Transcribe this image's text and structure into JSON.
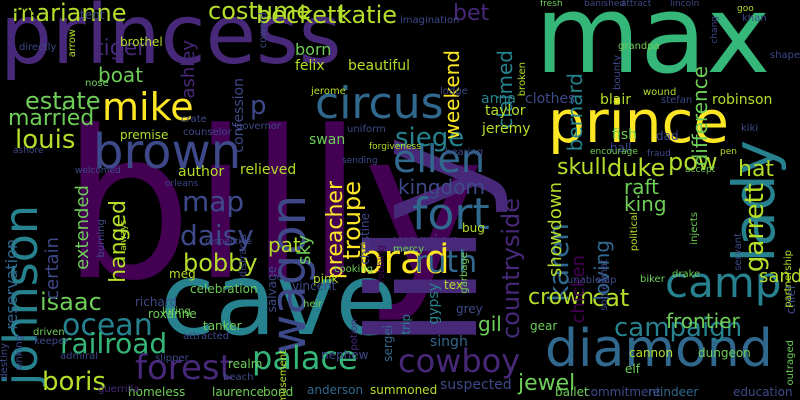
{
  "background": "#000000",
  "palette": {
    "deep_purple": "#440154",
    "purple": "#482878",
    "indigo": "#3e4989",
    "blue": "#31688e",
    "teal": "#26828e",
    "sea": "#1f9e89",
    "green": "#35b779",
    "lime": "#6ece58",
    "yellow_green": "#b5de2b",
    "yellow": "#fde725"
  },
  "words": [
    {
      "text": "billy",
      "color": "#440154"
    },
    {
      "text": "max",
      "color": "#35b779"
    },
    {
      "text": "princess",
      "color": "#482878"
    },
    {
      "text": "cave",
      "color": "#26828e"
    },
    {
      "text": "lily",
      "color": "#482878"
    },
    {
      "text": "prince",
      "color": "#fde725"
    },
    {
      "text": "diamond",
      "color": "#31688e"
    },
    {
      "text": "circus",
      "color": "#31688e"
    },
    {
      "text": "wagon",
      "color": "#3e4989"
    },
    {
      "text": "brown",
      "color": "#3e4989"
    },
    {
      "text": "camp",
      "color": "#26828e"
    },
    {
      "text": "lady",
      "color": "#26828e"
    },
    {
      "text": "mike",
      "color": "#fde725"
    },
    {
      "text": "johnson",
      "color": "#26828e"
    },
    {
      "text": "ellen",
      "color": "#31688e"
    },
    {
      "text": "forest",
      "color": "#482878"
    },
    {
      "text": "palace",
      "color": "#35b779"
    },
    {
      "text": "cowboy",
      "color": "#482878"
    },
    {
      "text": "fort",
      "color": "#31688e"
    },
    {
      "text": "brad",
      "color": "#fde725"
    },
    {
      "text": "ocean",
      "color": "#26828e"
    },
    {
      "text": "railroad",
      "color": "#35b779"
    },
    {
      "text": "campaign",
      "color": "#26828e"
    },
    {
      "text": "costume",
      "color": "#b5de2b"
    },
    {
      "text": "beckett",
      "color": "#b5de2b"
    },
    {
      "text": "katie",
      "color": "#b5de2b"
    },
    {
      "text": "marianne",
      "color": "#b5de2b"
    },
    {
      "text": "ruth",
      "color": "#31688e"
    },
    {
      "text": "kingdom",
      "color": "#3e4989"
    },
    {
      "text": "countryside",
      "color": "#482878"
    },
    {
      "text": "boris",
      "color": "#b5de2b"
    },
    {
      "text": "louis",
      "color": "#b5de2b"
    },
    {
      "text": "karen",
      "color": "#31688e"
    },
    {
      "text": "crown",
      "color": "#b5de2b"
    },
    {
      "text": "cat",
      "color": "#b5de2b"
    },
    {
      "text": "garrett",
      "color": "#b5de2b"
    },
    {
      "text": "hat",
      "color": "#b5de2b"
    },
    {
      "text": "duke",
      "color": "#b5de2b"
    },
    {
      "text": "troupe",
      "color": "#fde725"
    },
    {
      "text": "preacher",
      "color": "#fde725"
    },
    {
      "text": "estate",
      "color": "#6ece58"
    },
    {
      "text": "married",
      "color": "#6ece58"
    },
    {
      "text": "tiger",
      "color": "#482878"
    },
    {
      "text": "siege",
      "color": "#26828e"
    },
    {
      "text": "hanged",
      "color": "#b5de2b"
    },
    {
      "text": "map",
      "color": "#3e4989"
    },
    {
      "text": "daisy",
      "color": "#3e4989"
    },
    {
      "text": "bobby",
      "color": "#b5de2b"
    },
    {
      "text": "isaac",
      "color": "#6ece58"
    },
    {
      "text": "frontier",
      "color": "#6ece58"
    },
    {
      "text": "jewel",
      "color": "#6ece58"
    },
    {
      "text": "gil",
      "color": "#6ece58"
    },
    {
      "text": "pow",
      "color": "#b5de2b"
    },
    {
      "text": "loving",
      "color": "#31688e"
    },
    {
      "text": "king",
      "color": "#6ece58"
    },
    {
      "text": "raft",
      "color": "#6ece58"
    },
    {
      "text": "skull",
      "color": "#b5de2b"
    },
    {
      "text": "p",
      "color": "#3e4989"
    },
    {
      "text": "ashley",
      "color": "#482878"
    },
    {
      "text": "boat",
      "color": "#6ece58"
    },
    {
      "text": "bet",
      "color": "#482878"
    },
    {
      "text": "weekend",
      "color": "#fde725"
    },
    {
      "text": "claimed",
      "color": "#26828e"
    },
    {
      "text": "difference",
      "color": "#6ece58"
    },
    {
      "text": "bernard",
      "color": "#26828e"
    },
    {
      "text": "sand",
      "color": "#b5de2b"
    },
    {
      "text": "warrior",
      "color": "#482878"
    },
    {
      "text": "pat",
      "color": "#b5de2b"
    },
    {
      "text": "sky",
      "color": "#6ece58"
    },
    {
      "text": "showdown",
      "color": "#b5de2b"
    },
    {
      "text": "chicken",
      "color": "#440154"
    },
    {
      "text": "certain",
      "color": "#3e4989"
    },
    {
      "text": "extended",
      "color": "#6ece58"
    },
    {
      "text": "reservation",
      "color": "#31688e"
    },
    {
      "text": "author",
      "color": "#b5de2b"
    },
    {
      "text": "relieved",
      "color": "#b5de2b"
    },
    {
      "text": "confession",
      "color": "#3e4989"
    },
    {
      "text": "born",
      "color": "#6ece58"
    },
    {
      "text": "felix",
      "color": "#b5de2b"
    },
    {
      "text": "beautiful",
      "color": "#b5de2b"
    },
    {
      "text": "anna",
      "color": "#26828e"
    },
    {
      "text": "taylor",
      "color": "#b5de2b"
    },
    {
      "text": "jeremy",
      "color": "#b5de2b"
    },
    {
      "text": "clothes",
      "color": "#3e4989"
    },
    {
      "text": "blair",
      "color": "#b5de2b"
    },
    {
      "text": "robinson",
      "color": "#b5de2b"
    },
    {
      "text": "fish",
      "color": "#6ece58"
    },
    {
      "text": "dad",
      "color": "#3e4989"
    },
    {
      "text": "hall",
      "color": "#3e4989"
    },
    {
      "text": "swan",
      "color": "#6ece58"
    },
    {
      "text": "anderson",
      "color": "#31688e"
    },
    {
      "text": "summoned",
      "color": "#b5de2b"
    },
    {
      "text": "suspected",
      "color": "#3e4989"
    },
    {
      "text": "laurence",
      "color": "#6ece58"
    },
    {
      "text": "bond",
      "color": "#6ece58"
    },
    {
      "text": "homeless",
      "color": "#6ece58"
    },
    {
      "text": "cannon",
      "color": "#b5de2b"
    },
    {
      "text": "dungeon",
      "color": "#6ece58"
    },
    {
      "text": "education",
      "color": "#3e4989"
    },
    {
      "text": "reindeer",
      "color": "#31688e"
    },
    {
      "text": "commitment",
      "color": "#3e4989"
    },
    {
      "text": "ballet",
      "color": "#6ece58"
    },
    {
      "text": "singh",
      "color": "#31688e"
    },
    {
      "text": "elf",
      "color": "#6ece58"
    },
    {
      "text": "gypsy",
      "color": "#26828e"
    },
    {
      "text": "trip",
      "color": "#26828e"
    },
    {
      "text": "gear",
      "color": "#6ece58"
    },
    {
      "text": "sergei",
      "color": "#31688e"
    },
    {
      "text": "potion",
      "color": "#482878"
    },
    {
      "text": "nephew",
      "color": "#3e4989"
    },
    {
      "text": "realm",
      "color": "#6ece58"
    },
    {
      "text": "beach",
      "color": "#3e4989"
    },
    {
      "text": "amusement",
      "color": "#b5de2b"
    },
    {
      "text": "pink",
      "color": "#b5de2b"
    },
    {
      "text": "tex",
      "color": "#b5de2b"
    },
    {
      "text": "grey",
      "color": "#3e4989"
    },
    {
      "text": "salvage",
      "color": "#3e4989"
    },
    {
      "text": "heir",
      "color": "#6ece58"
    },
    {
      "text": "vincent",
      "color": "#3e4989"
    },
    {
      "text": "mercy",
      "color": "#6ece58"
    },
    {
      "text": "bug",
      "color": "#b5de2b"
    },
    {
      "text": "robbing",
      "color": "#440154"
    },
    {
      "text": "garbage",
      "color": "#6ece58"
    },
    {
      "text": "distracts",
      "color": "#3e4989"
    },
    {
      "text": "christine",
      "color": "#3e4989"
    },
    {
      "text": "cooking",
      "color": "#6ece58"
    },
    {
      "text": "somewhat",
      "color": "#3e4989"
    },
    {
      "text": "injects",
      "color": "#6ece58"
    },
    {
      "text": "servant",
      "color": "#3e4989"
    },
    {
      "text": "political",
      "color": "#b5de2b"
    },
    {
      "text": "drake",
      "color": "#6ece58"
    },
    {
      "text": "biker",
      "color": "#6ece58"
    },
    {
      "text": "chief",
      "color": "#3e4989"
    },
    {
      "text": "outraged",
      "color": "#6ece58"
    },
    {
      "text": "partnership",
      "color": "#b5de2b"
    },
    {
      "text": "celebration",
      "color": "#6ece58"
    },
    {
      "text": "tanker",
      "color": "#6ece58"
    },
    {
      "text": "meg",
      "color": "#b5de2b"
    },
    {
      "text": "richard",
      "color": "#3e4989"
    },
    {
      "text": "roxanne",
      "color": "#6ece58"
    },
    {
      "text": "luring",
      "color": "#6ece58"
    },
    {
      "text": "attracted",
      "color": "#3e4989"
    },
    {
      "text": "driven",
      "color": "#6ece58"
    },
    {
      "text": "keeper",
      "color": "#3e4989"
    },
    {
      "text": "admiral",
      "color": "#3e4989"
    },
    {
      "text": "sinking",
      "color": "#3e4989"
    },
    {
      "text": "destiny",
      "color": "#3e4989"
    },
    {
      "text": "guerrilla",
      "color": "#482878"
    },
    {
      "text": "slipper",
      "color": "#3e4989"
    },
    {
      "text": "tent",
      "color": "#3e4989"
    },
    {
      "text": "brothel",
      "color": "#b5de2b"
    },
    {
      "text": "arrow",
      "color": "#b5de2b"
    },
    {
      "text": "directly",
      "color": "#3e4989"
    },
    {
      "text": "nose",
      "color": "#6ece58"
    },
    {
      "text": "crate",
      "color": "#3e4989"
    },
    {
      "text": "premise",
      "color": "#b5de2b"
    },
    {
      "text": "counselor",
      "color": "#3e4989"
    },
    {
      "text": "governor",
      "color": "#3e4989"
    },
    {
      "text": "jerome",
      "color": "#b5de2b"
    },
    {
      "text": "uniform",
      "color": "#3e4989"
    },
    {
      "text": "coward",
      "color": "#3e4989"
    },
    {
      "text": "imagination",
      "color": "#3e4989"
    },
    {
      "text": "lodge",
      "color": "#3e4989"
    },
    {
      "text": "broken",
      "color": "#b5de2b"
    },
    {
      "text": "grandpa",
      "color": "#6ece58"
    },
    {
      "text": "bounty",
      "color": "#3e4989"
    },
    {
      "text": "stefan",
      "color": "#3e4989"
    },
    {
      "text": "wound",
      "color": "#b5de2b"
    },
    {
      "text": "fresh",
      "color": "#6ece58"
    },
    {
      "text": "banished",
      "color": "#3e4989"
    },
    {
      "text": "attract",
      "color": "#3e4989"
    },
    {
      "text": "lincoln",
      "color": "#3e4989"
    },
    {
      "text": "khan",
      "color": "#3e4989"
    },
    {
      "text": "goo",
      "color": "#b5de2b"
    },
    {
      "text": "chang",
      "color": "#3e4989"
    },
    {
      "text": "shaped",
      "color": "#3e4989"
    },
    {
      "text": "kiki",
      "color": "#3e4989"
    },
    {
      "text": "pen",
      "color": "#b5de2b"
    },
    {
      "text": "encourage",
      "color": "#6ece58"
    },
    {
      "text": "fraud",
      "color": "#3e4989"
    },
    {
      "text": "accept",
      "color": "#6ece58"
    },
    {
      "text": "hearing",
      "color": "#3e4989"
    },
    {
      "text": "forgiveness",
      "color": "#b5de2b"
    },
    {
      "text": "sending",
      "color": "#3e4989"
    },
    {
      "text": "ashore",
      "color": "#3e4989"
    },
    {
      "text": "welcomed",
      "color": "#3e4989"
    },
    {
      "text": "orleans",
      "color": "#3e4989"
    },
    {
      "text": "burning",
      "color": "#3e4989"
    },
    {
      "text": "always",
      "color": "#b5de2b"
    },
    {
      "text": "respective",
      "color": "#3e4989"
    },
    {
      "text": "unable",
      "color": "#3e4989"
    },
    {
      "text": "slap",
      "color": "#3e4989"
    },
    {
      "text": "hang",
      "color": "#6ece58"
    }
  ]
}
